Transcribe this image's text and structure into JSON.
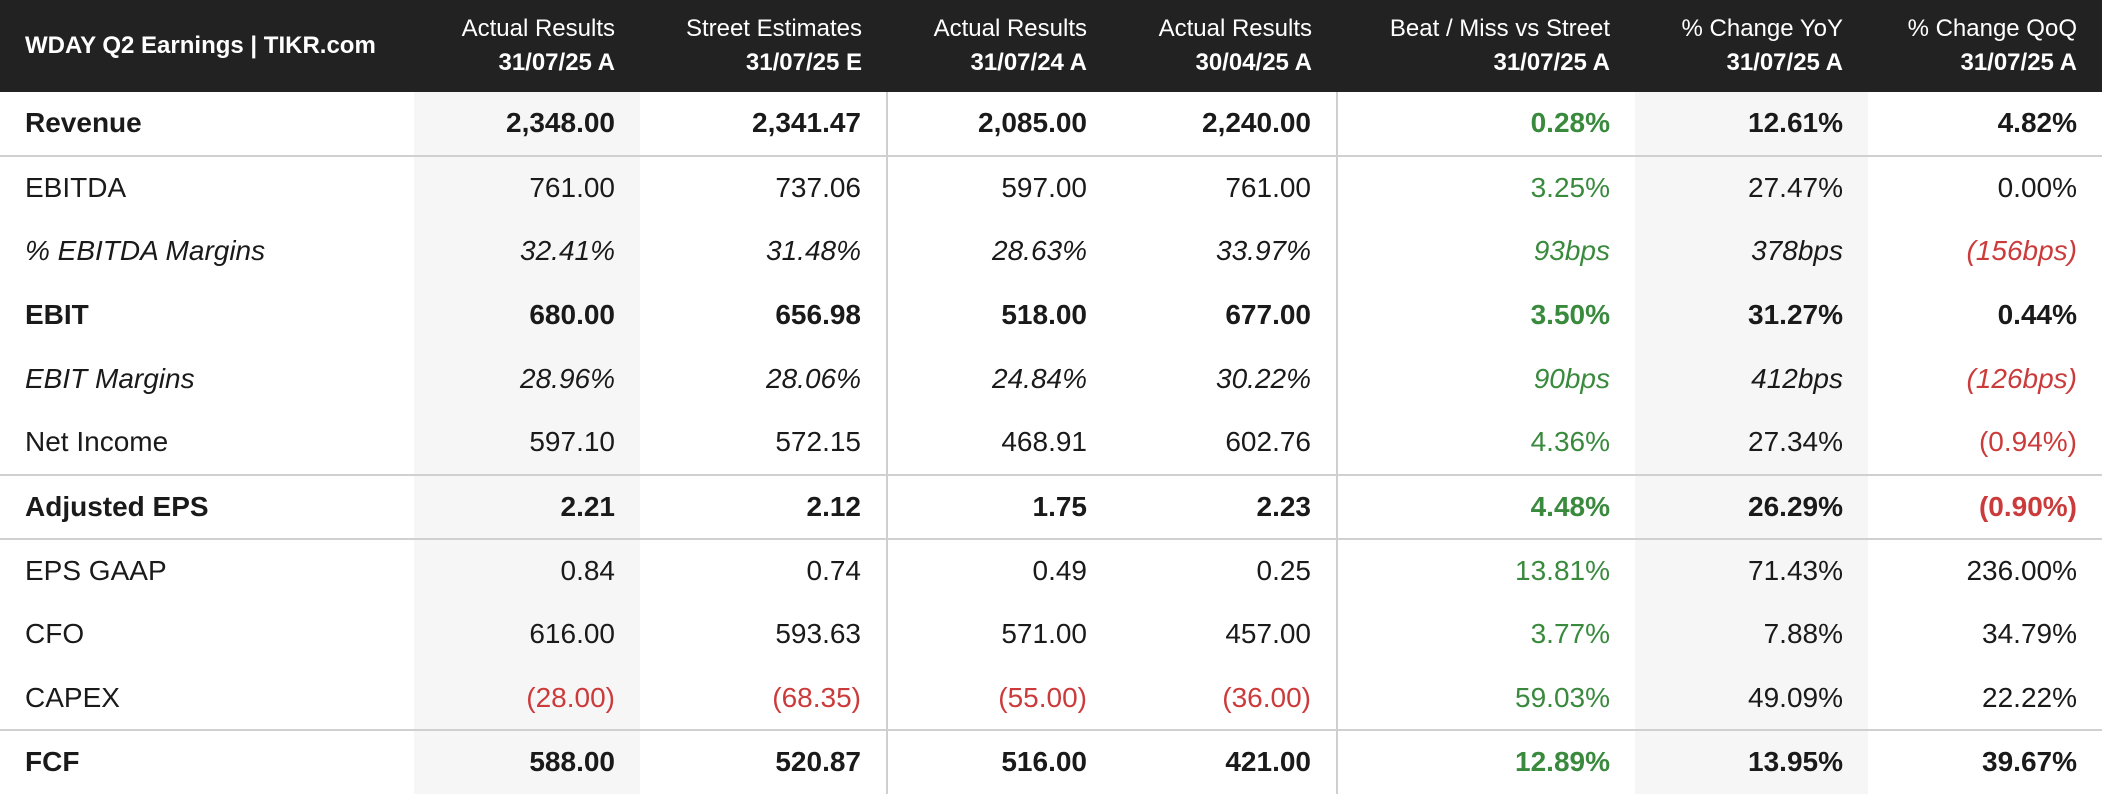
{
  "title": "WDAY Q2 Earnings | TIKR.com",
  "columns": [
    {
      "line1": "Actual Results",
      "line2": "31/07/25 A"
    },
    {
      "line1": "Street Estimates",
      "line2": "31/07/25 E"
    },
    {
      "line1": "Actual Results",
      "line2": "31/07/24 A"
    },
    {
      "line1": "Actual Results",
      "line2": "30/04/25 A"
    },
    {
      "line1": "Beat / Miss vs Street",
      "line2": "31/07/25 A"
    },
    {
      "line1": "% Change YoY",
      "line2": "31/07/25 A"
    },
    {
      "line1": "% Change QoQ",
      "line2": "31/07/25 A"
    }
  ],
  "rows": [
    {
      "label": "Revenue",
      "cells": [
        "2,348.00",
        "2,341.47",
        "2,085.00",
        "2,240.00",
        "0.28%",
        "12.61%",
        "4.82%"
      ]
    },
    {
      "label": "EBITDA",
      "cells": [
        "761.00",
        "737.06",
        "597.00",
        "761.00",
        "3.25%",
        "27.47%",
        "0.00%"
      ]
    },
    {
      "label": "% EBITDA Margins",
      "cells": [
        "32.41%",
        "31.48%",
        "28.63%",
        "33.97%",
        "93bps",
        "378bps",
        "(156bps)"
      ]
    },
    {
      "label": "EBIT",
      "cells": [
        "680.00",
        "656.98",
        "518.00",
        "677.00",
        "3.50%",
        "31.27%",
        "0.44%"
      ]
    },
    {
      "label": "EBIT Margins",
      "cells": [
        "28.96%",
        "28.06%",
        "24.84%",
        "30.22%",
        "90bps",
        "412bps",
        "(126bps)"
      ]
    },
    {
      "label": "Net Income",
      "cells": [
        "597.10",
        "572.15",
        "468.91",
        "602.76",
        "4.36%",
        "27.34%",
        "(0.94%)"
      ]
    },
    {
      "label": "Adjusted EPS",
      "cells": [
        "2.21",
        "2.12",
        "1.75",
        "2.23",
        "4.48%",
        "26.29%",
        "(0.90%)"
      ]
    },
    {
      "label": "EPS GAAP",
      "cells": [
        "0.84",
        "0.74",
        "0.49",
        "0.25",
        "13.81%",
        "71.43%",
        "236.00%"
      ]
    },
    {
      "label": "CFO",
      "cells": [
        "616.00",
        "593.63",
        "571.00",
        "457.00",
        "3.77%",
        "7.88%",
        "34.79%"
      ]
    },
    {
      "label": "CAPEX",
      "cells": [
        "(28.00)",
        "(68.35)",
        "(55.00)",
        "(36.00)",
        "59.03%",
        "49.09%",
        "22.22%"
      ]
    },
    {
      "label": "FCF",
      "cells": [
        "588.00",
        "520.87",
        "516.00",
        "421.00",
        "12.89%",
        "13.95%",
        "39.67%"
      ]
    }
  ],
  "colors": {
    "positive": "#3a8a3e",
    "negative": "#cc3b3b",
    "header_bg": "#222222"
  }
}
